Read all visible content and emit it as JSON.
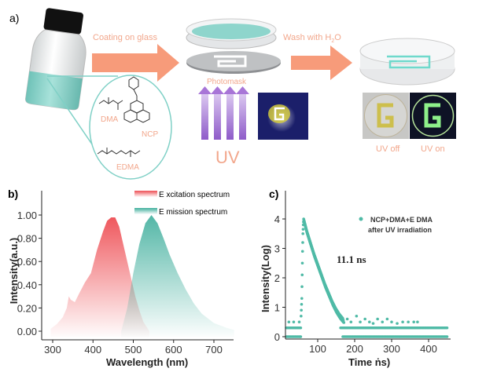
{
  "panel_a": {
    "label": "a)",
    "step1": "Coating on glass",
    "photomask": "Photomask",
    "uv": "UV",
    "step2_prefix": "Wash with H",
    "step2_sub": "2",
    "step2_suffix": "O",
    "uv_off": "UV off",
    "uv_on": "UV on",
    "monomers": [
      "DMA",
      "NCP",
      "EDMA"
    ],
    "colors": {
      "arrow": "#f79b7a",
      "text": "#f2a78c",
      "teal": "#7fd0c6",
      "uv": "#9a5ed1"
    }
  },
  "chart_data": [
    {
      "panel": "b)",
      "type": "area",
      "xlabel": "Wavelength (nm)",
      "ylabel": "Intensity(a.u.)",
      "xlim": [
        275,
        750
      ],
      "ylim": [
        -0.08,
        1.1
      ],
      "xticks": [
        "300",
        "400",
        "500",
        "600",
        "700"
      ],
      "yticks": [
        "0.00",
        "0.20",
        "0.40",
        "0.60",
        "0.80",
        "1.00"
      ],
      "legend": "top-right",
      "series": [
        {
          "name": "E xcitation spectrum",
          "color": "#ee4f55",
          "x": [
            295,
            310,
            325,
            335,
            340,
            345,
            355,
            365,
            380,
            395,
            410,
            425,
            435,
            445,
            455,
            465,
            475,
            485,
            495,
            505,
            515,
            525,
            540
          ],
          "y": [
            0.02,
            0.06,
            0.12,
            0.2,
            0.3,
            0.27,
            0.25,
            0.32,
            0.42,
            0.5,
            0.7,
            0.86,
            0.95,
            0.98,
            0.98,
            0.9,
            0.75,
            0.6,
            0.45,
            0.3,
            0.18,
            0.08,
            0.0
          ]
        },
        {
          "name": "E mission spectrum",
          "color": "#3fae9c",
          "x": [
            470,
            485,
            500,
            515,
            530,
            545,
            560,
            575,
            590,
            610,
            630,
            650,
            670,
            700,
            730,
            750
          ],
          "y": [
            0.0,
            0.2,
            0.5,
            0.75,
            0.93,
            1.0,
            0.93,
            0.8,
            0.66,
            0.5,
            0.36,
            0.24,
            0.15,
            0.07,
            0.03,
            0.01
          ]
        }
      ]
    },
    {
      "panel": "c)",
      "type": "scatter",
      "xlabel": "Time   (ns)",
      "xlabel_shown": "Time   ṅs)",
      "ylabel": "Intensity(Log)",
      "xlim": [
        13,
        460
      ],
      "ylim": [
        -0.1,
        4.3
      ],
      "xticks": [
        "100",
        "200",
        "300",
        "400"
      ],
      "yticks": [
        "0",
        "1",
        "2",
        "3",
        "4"
      ],
      "annotation": "11.1 ns",
      "legend": "top-right",
      "legend_line1": "NCP+DMA+E DMA",
      "legend_line2": "after UV irradiation",
      "color": "#4fbaa6",
      "decay": {
        "t": [
          55,
          57,
          58,
          59,
          60,
          61,
          62,
          65,
          70,
          80,
          90,
          100,
          110,
          120,
          130,
          140,
          150,
          160,
          170
        ],
        "y": [
          0.7,
          1.3,
          2.1,
          2.9,
          3.5,
          3.8,
          4.0,
          3.85,
          3.6,
          3.2,
          2.8,
          2.45,
          2.1,
          1.75,
          1.45,
          1.15,
          0.9,
          0.7,
          0.55
        ]
      },
      "baseline": [
        {
          "level": 0,
          "t": [
            15,
            55
          ]
        },
        {
          "level": 0.3,
          "t": [
            15,
            55
          ]
        },
        {
          "level": 0,
          "t": [
            168,
            450
          ]
        },
        {
          "level": 0.3,
          "t": [
            162,
            450
          ]
        }
      ],
      "scatter_extra": {
        "t": [
          22,
          35,
          50,
          180,
          190,
          205,
          215,
          228,
          240,
          250,
          262,
          275,
          288,
          300,
          315,
          330,
          345,
          360,
          370
        ],
        "y": [
          0.5,
          0.5,
          0.5,
          0.6,
          0.5,
          0.7,
          0.5,
          0.6,
          0.5,
          0.45,
          0.6,
          0.5,
          0.6,
          0.5,
          0.45,
          0.5,
          0.5,
          0.5,
          0.5
        ]
      }
    }
  ]
}
